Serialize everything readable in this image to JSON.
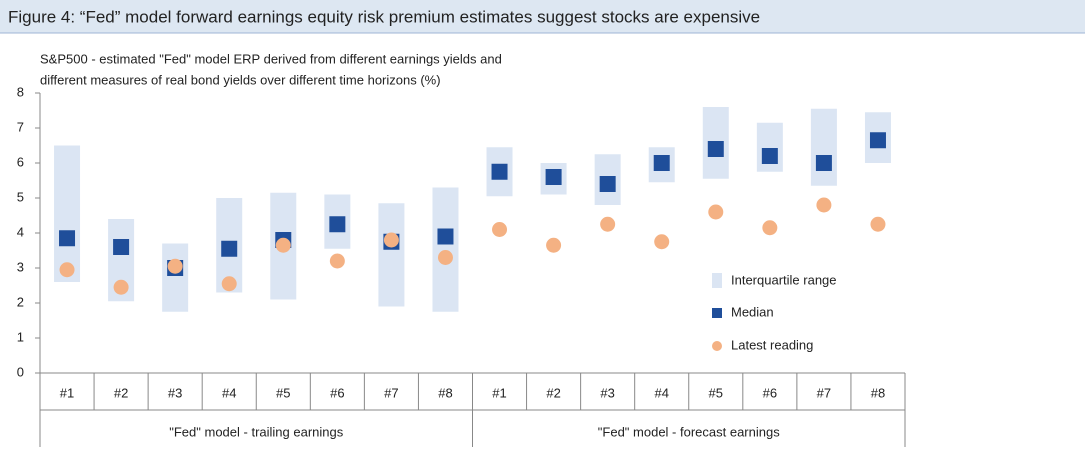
{
  "chart_data": {
    "type": "range",
    "title": "Figure 4: “Fed” model forward earnings equity risk premium estimates suggest stocks are expensive",
    "subtitle": [
      "S&P500 - estimated \"Fed\" model ERP derived from different earnings yields and",
      "different measures of real bond yields over different time horizons (%)"
    ],
    "groups": [
      {
        "label": "\"Fed\" model - trailing earnings",
        "categories": [
          "#1",
          "#2",
          "#3",
          "#4",
          "#5",
          "#6",
          "#7",
          "#8"
        ]
      },
      {
        "label": "\"Fed\" model - forecast earnings",
        "categories": [
          "#1",
          "#2",
          "#3",
          "#4",
          "#5",
          "#6",
          "#7",
          "#8"
        ]
      }
    ],
    "range": {
      "name": "Interquartile range",
      "color": "#dbe5f3",
      "low": [
        2.6,
        2.05,
        1.75,
        2.3,
        2.1,
        3.55,
        1.9,
        1.75,
        5.05,
        5.1,
        4.8,
        5.45,
        5.55,
        5.75,
        5.35,
        6.0
      ],
      "high": [
        6.5,
        4.4,
        3.7,
        5.0,
        5.15,
        5.1,
        4.85,
        5.3,
        6.45,
        6.0,
        6.25,
        6.45,
        7.6,
        7.15,
        7.55,
        7.45
      ]
    },
    "series": [
      {
        "name": "Median",
        "color": "#1f4e9a",
        "marker": "square",
        "values": [
          3.85,
          3.6,
          3.0,
          3.55,
          3.8,
          4.25,
          3.75,
          3.9,
          5.75,
          5.6,
          5.4,
          6.0,
          6.4,
          6.2,
          6.0,
          6.65
        ]
      },
      {
        "name": "Latest reading",
        "color": "#f4b183",
        "marker": "circle",
        "values": [
          2.95,
          2.45,
          3.05,
          2.55,
          3.65,
          3.2,
          3.8,
          3.3,
          4.1,
          3.65,
          4.25,
          3.75,
          4.6,
          4.15,
          4.8,
          4.25
        ]
      }
    ],
    "ylim": [
      0,
      8
    ],
    "yticks": [
      0,
      1,
      2,
      3,
      4,
      5,
      6,
      7,
      8
    ],
    "grid": false
  }
}
